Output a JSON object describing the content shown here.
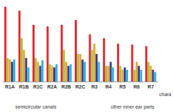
{
  "chart_data": {
    "type": "bar",
    "categories": [
      "R1A",
      "R1B",
      "R1C",
      "R2A",
      "R2B",
      "R2C",
      "R3",
      "R4",
      "R5",
      "R6",
      "R7"
    ],
    "series": [
      {
        "color": "#e3262b",
        "values": [
          95,
          90,
          72,
          70,
          72,
          78,
          60,
          55,
          48,
          47,
          45
        ]
      },
      {
        "color": "#a9c23c",
        "values": [
          30,
          55,
          30,
          22,
          40,
          35,
          40,
          20,
          20,
          15,
          25
        ]
      },
      {
        "color": "#e9a63b",
        "values": [
          28,
          40,
          25,
          20,
          25,
          35,
          48,
          20,
          15,
          25,
          20
        ]
      },
      {
        "color": "#3d3a8e",
        "values": [
          25,
          30,
          20,
          18,
          20,
          28,
          35,
          25,
          18,
          20,
          15
        ]
      },
      {
        "color": "#2cb2e2",
        "values": [
          28,
          18,
          27,
          22,
          22,
          25,
          25,
          18,
          15,
          15,
          12
        ]
      }
    ],
    "ylim": [
      0,
      100
    ],
    "tick_labels": "x",
    "grid": false,
    "annotations": [
      "semicircular canals",
      "other inner ear parts",
      "chara"
    ]
  }
}
